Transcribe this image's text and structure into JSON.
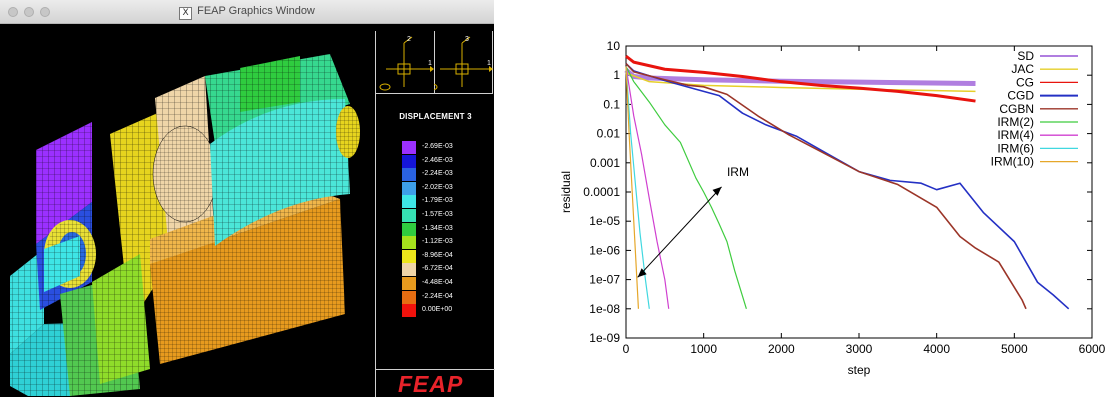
{
  "window": {
    "title": "FEAP Graphics Window",
    "title_icon": "x11-icon"
  },
  "sidebar": {
    "axis_left": {
      "top": "2",
      "right": "1"
    },
    "axis_right": {
      "top": "3",
      "right": "1"
    },
    "legend_title": "DISPLACEMENT 3",
    "legend": [
      {
        "value": "-2.69E-03",
        "color": "#9b30ff"
      },
      {
        "value": "-2.46E-03",
        "color": "#1515d8"
      },
      {
        "value": "-2.24E-03",
        "color": "#2a62e0"
      },
      {
        "value": "-2.02E-03",
        "color": "#3d9ee8"
      },
      {
        "value": "-1.79E-03",
        "color": "#3ee5e6"
      },
      {
        "value": "-1.57E-03",
        "color": "#36e0b3"
      },
      {
        "value": "-1.34E-03",
        "color": "#2fcc3f"
      },
      {
        "value": "-1.12E-03",
        "color": "#a5e21c"
      },
      {
        "value": "-8.96E-04",
        "color": "#ede61b"
      },
      {
        "value": "-6.72E-04",
        "color": "#efd5a8"
      },
      {
        "value": "-4.48E-04",
        "color": "#e79a1e"
      },
      {
        "value": "-2.24E-04",
        "color": "#e66d12"
      },
      {
        "value": "0.00E+00",
        "color": "#f0120c"
      }
    ],
    "brand": "FEAP"
  },
  "chart_data": {
    "type": "line",
    "xlabel": "step",
    "ylabel": "residual",
    "xlim": [
      0,
      6000
    ],
    "ylim_log10": [
      -9,
      1
    ],
    "y_scale": "log",
    "xticks": [
      0,
      1000,
      2000,
      3000,
      4000,
      5000,
      6000
    ],
    "yticks": [
      "10",
      "1",
      "0.1",
      "0.01",
      "0.001",
      "0.0001",
      "1e-05",
      "1e-06",
      "1e-07",
      "1e-08",
      "1e-09"
    ],
    "legend_position": "top-right",
    "annotation": {
      "text": "IRM"
    },
    "series": [
      {
        "name": "SD",
        "color": "#b07ee0",
        "points": [
          [
            0,
            1.5
          ],
          [
            100,
            0.9
          ],
          [
            300,
            0.8
          ],
          [
            1000,
            0.7
          ],
          [
            2000,
            0.62
          ],
          [
            3000,
            0.58
          ],
          [
            4500,
            0.52
          ]
        ]
      },
      {
        "name": "JAC",
        "color": "#e6cf2a",
        "points": [
          [
            0,
            1.2
          ],
          [
            300,
            0.6
          ],
          [
            1000,
            0.45
          ],
          [
            2000,
            0.38
          ],
          [
            3000,
            0.33
          ],
          [
            4500,
            0.28
          ]
        ]
      },
      {
        "name": "CG",
        "color": "#e8140e",
        "points": [
          [
            0,
            4.5
          ],
          [
            100,
            2.8
          ],
          [
            500,
            1.6
          ],
          [
            1000,
            1.25
          ],
          [
            1500,
            0.9
          ],
          [
            2000,
            0.6
          ],
          [
            2500,
            0.45
          ],
          [
            3000,
            0.36
          ],
          [
            3500,
            0.28
          ],
          [
            4000,
            0.2
          ],
          [
            4500,
            0.13
          ]
        ]
      },
      {
        "name": "CGD",
        "color": "#2430c4",
        "points": [
          [
            0,
            2.5
          ],
          [
            100,
            1.4
          ],
          [
            500,
            0.65
          ],
          [
            900,
            0.33
          ],
          [
            1200,
            0.2
          ],
          [
            1500,
            0.05
          ],
          [
            1800,
            0.02
          ],
          [
            2200,
            0.008
          ],
          [
            2600,
            0.002
          ],
          [
            3000,
            0.0005
          ],
          [
            3400,
            0.00025
          ],
          [
            3800,
            0.0002
          ],
          [
            4000,
            0.00012
          ],
          [
            4300,
            0.0002
          ],
          [
            4600,
            2e-05
          ],
          [
            5000,
            2e-06
          ],
          [
            5300,
            8e-08
          ],
          [
            5500,
            3e-08
          ],
          [
            5700,
            1e-08
          ]
        ]
      },
      {
        "name": "CGBN",
        "color": "#9b3528",
        "points": [
          [
            0,
            2.5
          ],
          [
            100,
            1.3
          ],
          [
            500,
            0.7
          ],
          [
            800,
            0.45
          ],
          [
            1000,
            0.4
          ],
          [
            1300,
            0.22
          ],
          [
            1700,
            0.04
          ],
          [
            2100,
            0.009
          ],
          [
            2500,
            0.0025
          ],
          [
            3000,
            0.0005
          ],
          [
            3500,
            0.00018
          ],
          [
            4000,
            3e-05
          ],
          [
            4300,
            3e-06
          ],
          [
            4500,
            1.2e-06
          ],
          [
            4800,
            4e-07
          ],
          [
            5100,
            2e-08
          ],
          [
            5150,
            1e-08
          ]
        ]
      },
      {
        "name": "IRM(2)",
        "color": "#3fcc3f",
        "points": [
          [
            0,
            2
          ],
          [
            100,
            0.6
          ],
          [
            300,
            0.12
          ],
          [
            500,
            0.02
          ],
          [
            700,
            0.005
          ],
          [
            900,
            0.0003
          ],
          [
            1000,
            0.0001
          ],
          [
            1100,
            3e-05
          ],
          [
            1200,
            8e-06
          ],
          [
            1300,
            2e-06
          ],
          [
            1400,
            2e-07
          ],
          [
            1550,
            1e-08
          ]
        ]
      },
      {
        "name": "IRM(4)",
        "color": "#d040d0",
        "points": [
          [
            0,
            2
          ],
          [
            100,
            0.04
          ],
          [
            200,
            0.002
          ],
          [
            300,
            6e-05
          ],
          [
            400,
            2e-06
          ],
          [
            500,
            1e-07
          ],
          [
            550,
            1e-08
          ]
        ]
      },
      {
        "name": "IRM(6)",
        "color": "#40d8e0",
        "points": [
          [
            0,
            2
          ],
          [
            60,
            0.01
          ],
          [
            120,
            0.0002
          ],
          [
            180,
            4e-06
          ],
          [
            250,
            1e-07
          ],
          [
            300,
            1e-08
          ]
        ]
      },
      {
        "name": "IRM(10)",
        "color": "#e6a72a",
        "points": [
          [
            0,
            2
          ],
          [
            40,
            0.01
          ],
          [
            80,
            0.0001
          ],
          [
            120,
            1e-06
          ],
          [
            160,
            1e-08
          ]
        ]
      }
    ]
  }
}
